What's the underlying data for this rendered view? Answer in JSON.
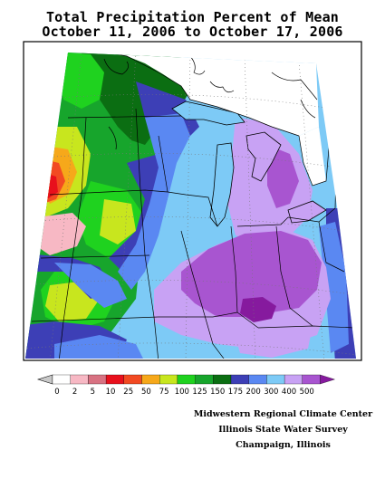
{
  "title": {
    "line1": "Total Precipitation Percent of Mean",
    "line2": "October 11, 2006 to October 17, 2006"
  },
  "legend": {
    "classes": [
      {
        "label": "0",
        "color": "#ffffff"
      },
      {
        "label": "2",
        "color": "#f7b8c4"
      },
      {
        "label": "5",
        "color": "#d87282"
      },
      {
        "label": "10",
        "color": "#e8101c"
      },
      {
        "label": "25",
        "color": "#f24a22"
      },
      {
        "label": "50",
        "color": "#f6a81a"
      },
      {
        "label": "75",
        "color": "#c8e61e"
      },
      {
        "label": "100",
        "color": "#1fd21f"
      },
      {
        "label": "125",
        "color": "#17a52c"
      },
      {
        "label": "150",
        "color": "#0b6e12"
      },
      {
        "label": "175",
        "color": "#3d3fb6"
      },
      {
        "label": "200",
        "color": "#5a88f2"
      },
      {
        "label": "300",
        "color": "#7dcaf6"
      },
      {
        "label": "400",
        "color": "#c8a2f4"
      },
      {
        "label": "500",
        "color": "#a855d0"
      },
      {
        "label": "",
        "color": "#861a9e"
      }
    ],
    "start_arrow_color": "#c8c8c8"
  },
  "credits": {
    "line1": "Midwestern Regional Climate Center",
    "line2": "Illinois State Water Survey",
    "line3": "Champaign, Illinois"
  }
}
